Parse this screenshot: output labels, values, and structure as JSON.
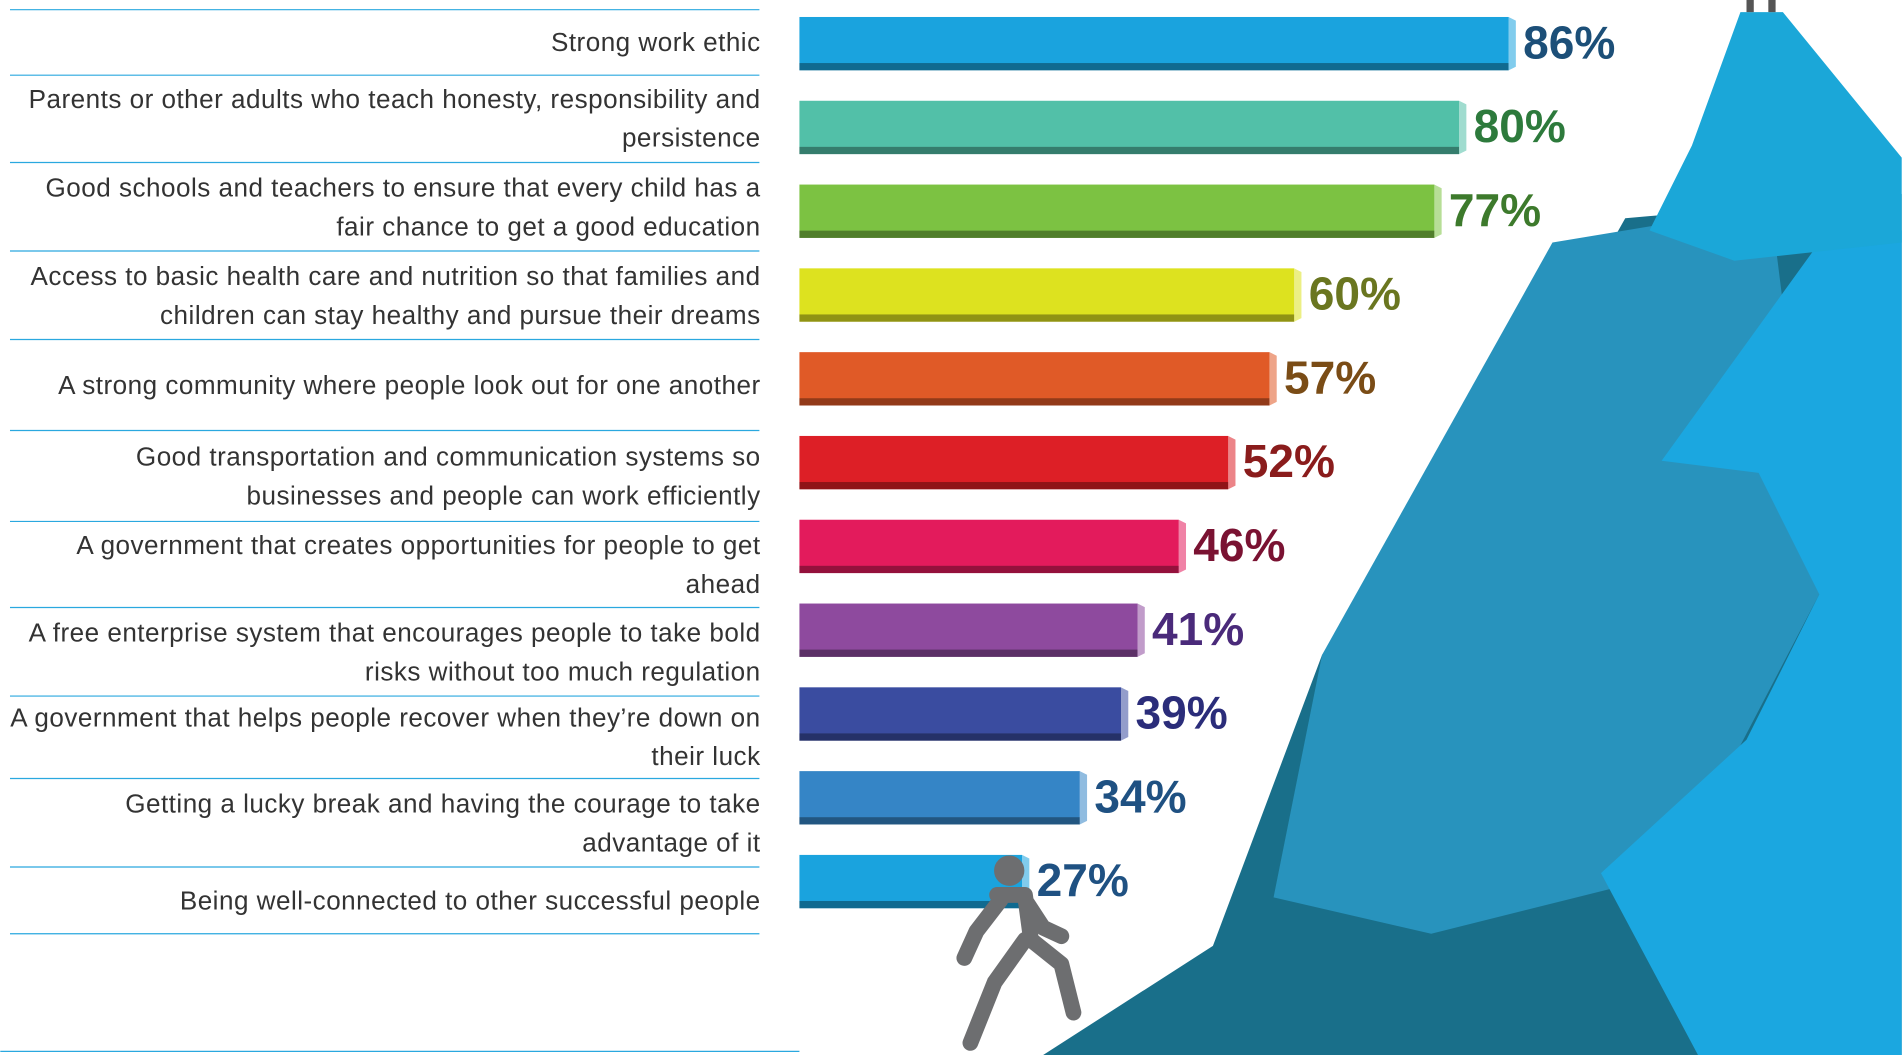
{
  "chart_data": {
    "type": "bar",
    "orientation": "horizontal",
    "categories": [
      "Strong work ethic",
      "Parents or other adults who teach honesty, responsibility and persistence",
      "Good schools and teachers to ensure that every child has a fair chance to get a good education",
      "Access to basic health care and nutrition so that families and children can stay healthy and pursue their dreams",
      "A strong community where people look out for one another",
      "Good transportation and communication systems so businesses and people can work efficiently",
      "A government that creates opportunities for people to get ahead",
      "A free enterprise system that encourages people to take bold risks without too much regulation",
      "A government that helps people recover when they’re down on their luck",
      "Getting a lucky break and having the courage to take advantage of it",
      "Being well-connected to other successful people"
    ],
    "values": [
      86,
      80,
      77,
      60,
      57,
      52,
      46,
      41,
      39,
      34,
      27
    ],
    "value_labels": [
      "86%",
      "80%",
      "77%",
      "60%",
      "57%",
      "52%",
      "46%",
      "41%",
      "39%",
      "34%",
      "27%"
    ],
    "colors": [
      "#1aa3de",
      "#52c0a8",
      "#7cc242",
      "#dde21f",
      "#e05a27",
      "#dd1f26",
      "#e31b5c",
      "#8e4a9e",
      "#3a4ca0",
      "#3585c6",
      "#1aa3de"
    ],
    "label_colors": [
      "#1c4f78",
      "#2d7a3c",
      "#3d7a2c",
      "#6a7620",
      "#7a4c16",
      "#8a1c1c",
      "#7a1232",
      "#4a2a7a",
      "#2b2d7a",
      "#1f5182",
      "#1f5182"
    ],
    "xlim": [
      0,
      100
    ]
  }
}
